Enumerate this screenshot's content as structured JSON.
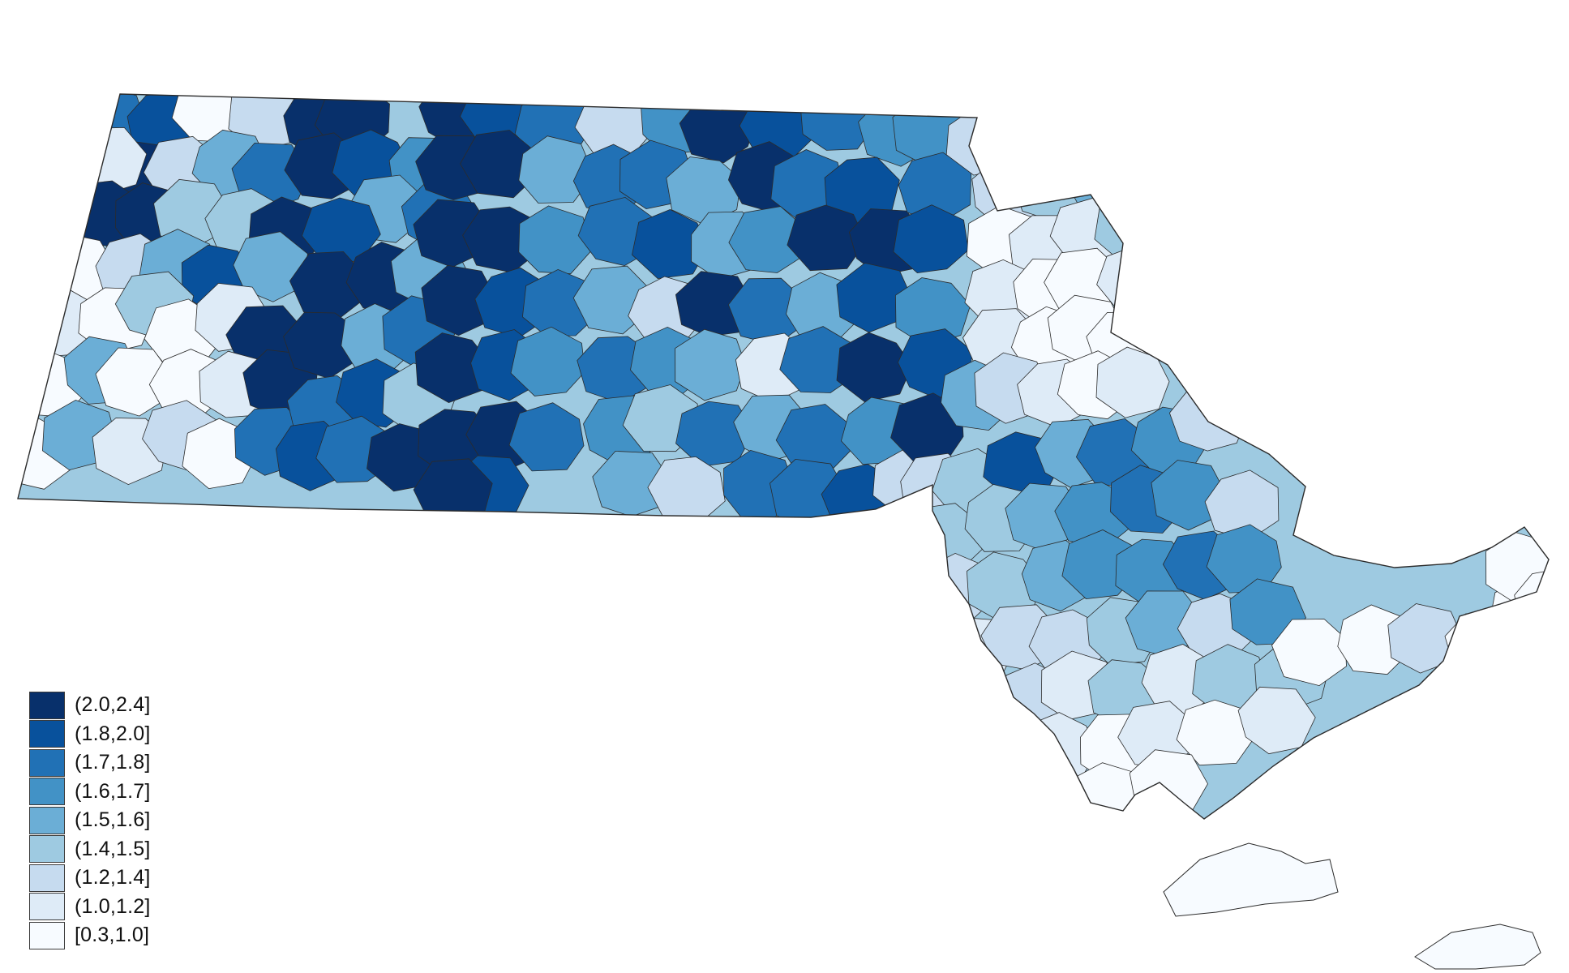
{
  "palette": {
    "outline": "#2b2b2b",
    "background": "#ffffff"
  },
  "legend": {
    "placement": "bottom-left",
    "items": [
      {
        "label": "(2.0,2.4]",
        "color": "#08306b"
      },
      {
        "label": "(1.8,2.0]",
        "color": "#08519c"
      },
      {
        "label": "(1.7,1.8]",
        "color": "#2171b5"
      },
      {
        "label": "(1.6,1.7]",
        "color": "#4292c6"
      },
      {
        "label": "(1.5,1.6]",
        "color": "#6baed6"
      },
      {
        "label": "(1.4,1.5]",
        "color": "#9ecae1"
      },
      {
        "label": "(1.2,1.4]",
        "color": "#c6dbef"
      },
      {
        "label": "(1.0,1.2]",
        "color": "#deebf7"
      },
      {
        "label": "[0.3,1.0]",
        "color": "#f7fbff"
      }
    ]
  }
}
